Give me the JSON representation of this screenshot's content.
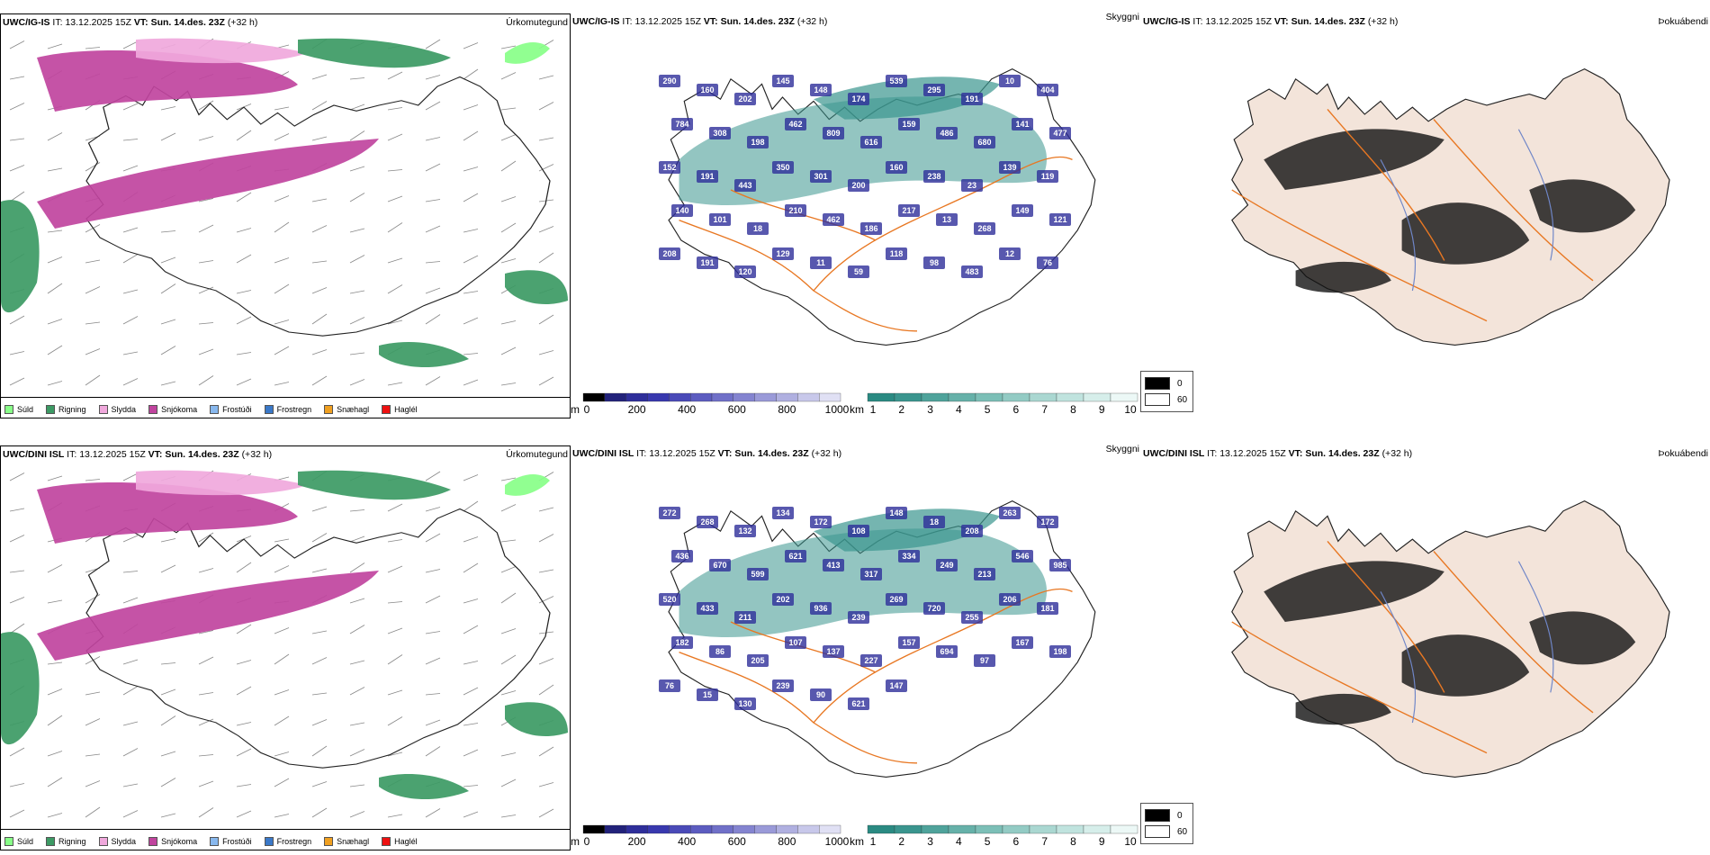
{
  "colors": {
    "sudd": "#88ff88",
    "rigning": "#3c9a64",
    "slydda": "#f0a8dc",
    "snjokoma": "#c0449e",
    "frostudi": "#88b8ee",
    "frostregn": "#3a78c8",
    "snaehagl": "#f0a020",
    "haglel": "#ee1111",
    "roads": "#e87722",
    "rivers": "#6f86c8",
    "cloud_teal": "#3a958e",
    "ceiling_blue": "#2e2e9a"
  },
  "rows": [
    {
      "model": "UWC/IG-IS",
      "it_label": "IT:",
      "it_value": "13.12.2025 15Z",
      "vt_label": "VT:",
      "vt_value": "Sun. 14.des. 23Z",
      "lead": "(+32 h)",
      "precip_title": "Úrkomutegund",
      "cloud_title": "Skyggni",
      "fog_title": "Þokuábendi",
      "ceiling_labels": [
        "290",
        "160",
        "202",
        "145",
        "148",
        "174",
        "539",
        "295",
        "191",
        "10",
        "404",
        "784",
        "308",
        "198",
        "462",
        "809",
        "616",
        "159",
        "486",
        "680",
        "141",
        "477",
        "152",
        "191",
        "443",
        "350",
        "301",
        "200",
        "160",
        "238",
        "23",
        "139",
        "119",
        "140",
        "101",
        "18",
        "210",
        "462",
        "186",
        "217",
        "13",
        "268",
        "149",
        "121",
        "208",
        "191",
        "120",
        "129",
        "11",
        "59",
        "118",
        "98",
        "483",
        "12",
        "76"
      ]
    },
    {
      "model": "UWC/DINI ISL",
      "it_label": "IT:",
      "it_value": "13.12.2025 15Z",
      "vt_label": "VT:",
      "vt_value": "Sun. 14.des. 23Z",
      "lead": "(+32 h)",
      "precip_title": "Úrkomutegund",
      "cloud_title": "Skyggni",
      "fog_title": "Þokuábendi",
      "ceiling_labels": [
        "272",
        "268",
        "132",
        "134",
        "172",
        "108",
        "148",
        "18",
        "208",
        "263",
        "172",
        "436",
        "670",
        "599",
        "621",
        "413",
        "317",
        "334",
        "249",
        "213",
        "546",
        "985",
        "520",
        "433",
        "211",
        "202",
        "936",
        "239",
        "269",
        "720",
        "255",
        "206",
        "181",
        "182",
        "86",
        "205",
        "107",
        "137",
        "227",
        "157",
        "694",
        "97",
        "167",
        "198",
        "76",
        "15",
        "130",
        "239",
        "90",
        "621",
        "147"
      ]
    }
  ],
  "precip_legend": [
    {
      "label": "Súld",
      "color": "#88ff88"
    },
    {
      "label": "Rigning",
      "color": "#3c9a64"
    },
    {
      "label": "Slydda",
      "color": "#f0a8dc"
    },
    {
      "label": "Snjókoma",
      "color": "#c0449e"
    },
    {
      "label": "Frostúði",
      "color": "#88b8ee"
    },
    {
      "label": "Frostregn",
      "color": "#3a78c8"
    },
    {
      "label": "Snæhagl",
      "color": "#f0a020"
    },
    {
      "label": "Haglél",
      "color": "#ee1111"
    }
  ],
  "ceiling_bar": {
    "unit": "m",
    "ticks": [
      "0",
      "200",
      "400",
      "600",
      "800",
      "1000"
    ],
    "colors": [
      "#000000",
      "#22227a",
      "#2e2e9a",
      "#3838ae",
      "#4a4ab8",
      "#5c5cc0",
      "#7070c8",
      "#8484d0",
      "#9a9ad8",
      "#b0b0e0",
      "#c8c8ea",
      "#e0e0f4"
    ]
  },
  "vis_bar": {
    "unit": "km",
    "ticks": [
      "1",
      "2",
      "3",
      "4",
      "5",
      "6",
      "7",
      "8",
      "9",
      "10"
    ],
    "colors": [
      "#2a8a82",
      "#3a958e",
      "#4fa39b",
      "#66b1a9",
      "#7cbfb7",
      "#93cbc4",
      "#aad7d1",
      "#c0e3de",
      "#d6eeea",
      "#ecf8f6"
    ]
  },
  "fog_legend": [
    {
      "label": "0",
      "color": "#000000"
    },
    {
      "label": "60",
      "color": "#ffffff"
    }
  ]
}
